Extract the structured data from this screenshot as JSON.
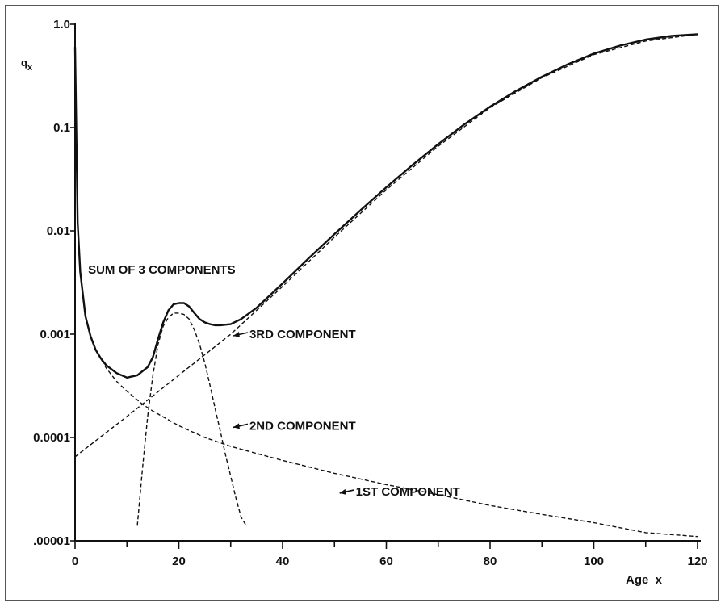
{
  "chart_data": {
    "type": "line",
    "title": "",
    "xlabel": "Age  x",
    "ylabel": "q",
    "ylabel_subscript": "x",
    "xlim": [
      0,
      120
    ],
    "ylim": [
      1e-05,
      1.0
    ],
    "yscale": "log",
    "grid": false,
    "x_ticks": [
      0,
      20,
      40,
      60,
      80,
      100,
      120
    ],
    "x_tick_labels": [
      "0",
      "20",
      "40",
      "60",
      "80",
      "100",
      "120"
    ],
    "y_ticks": [
      1e-05,
      0.0001,
      0.001,
      0.01,
      0.1,
      1.0
    ],
    "y_tick_labels": [
      ".00001",
      "0.0001",
      "0.001",
      "0.01",
      "0.1",
      "1.0"
    ],
    "series": [
      {
        "name": "SUM OF 3 COMPONENTS",
        "style": "solid",
        "x": [
          0,
          0.5,
          1,
          2,
          3,
          4,
          5,
          6,
          8,
          10,
          12,
          14,
          15,
          16,
          17,
          18,
          19,
          20,
          21,
          22,
          23,
          24,
          25,
          26,
          27,
          28,
          30,
          32,
          35,
          40,
          45,
          50,
          55,
          60,
          65,
          70,
          75,
          80,
          85,
          90,
          95,
          100,
          105,
          110,
          115,
          120
        ],
        "y": [
          0.6,
          0.012,
          0.004,
          0.0015,
          0.00095,
          0.0007,
          0.00058,
          0.0005,
          0.00042,
          0.00038,
          0.0004,
          0.00048,
          0.0006,
          0.0009,
          0.0013,
          0.0017,
          0.00195,
          0.002,
          0.002,
          0.00185,
          0.0016,
          0.0014,
          0.0013,
          0.00125,
          0.00122,
          0.00122,
          0.00125,
          0.0014,
          0.0018,
          0.0031,
          0.0054,
          0.0093,
          0.0158,
          0.0264,
          0.0432,
          0.069,
          0.107,
          0.159,
          0.226,
          0.31,
          0.41,
          0.52,
          0.62,
          0.71,
          0.77,
          0.8
        ]
      },
      {
        "name": "1ST COMPONENT",
        "style": "dashed",
        "x": [
          0,
          0.5,
          1,
          2,
          3,
          4,
          6,
          8,
          10,
          13,
          15,
          20,
          25,
          30,
          35,
          40,
          50,
          60,
          70,
          80,
          90,
          100,
          110,
          120
        ],
        "y": [
          0.6,
          0.012,
          0.004,
          0.0015,
          0.00095,
          0.0007,
          0.00047,
          0.00035,
          0.00028,
          0.00021,
          0.00018,
          0.00013,
          0.0001,
          8.2e-05,
          7e-05,
          6e-05,
          4.5e-05,
          3.5e-05,
          2.8e-05,
          2.2e-05,
          1.8e-05,
          1.5e-05,
          1.2e-05,
          1.1e-05
        ]
      },
      {
        "name": "2ND COMPONENT",
        "style": "dashed",
        "x": [
          12,
          13,
          14,
          15,
          16,
          17,
          18,
          19,
          20,
          21,
          22,
          23,
          24,
          25,
          26,
          27,
          28,
          29,
          30,
          31,
          32,
          33
        ],
        "y": [
          1.4e-05,
          5e-05,
          0.00016,
          0.0004,
          0.0008,
          0.0012,
          0.00145,
          0.0016,
          0.0016,
          0.00155,
          0.0014,
          0.0011,
          0.0008,
          0.00053,
          0.00032,
          0.00019,
          0.000115,
          6.8e-05,
          4.2e-05,
          2.6e-05,
          1.7e-05,
          1.4e-05
        ]
      },
      {
        "name": "3RD COMPONENT",
        "style": "dashed",
        "x": [
          0,
          10,
          20,
          30,
          40,
          50,
          60,
          70,
          80,
          90,
          100,
          110,
          120
        ],
        "y": [
          6.5e-05,
          0.00016,
          0.0004,
          0.001,
          0.0029,
          0.0087,
          0.025,
          0.066,
          0.156,
          0.304,
          0.508,
          0.688,
          0.8
        ]
      }
    ],
    "annotations": [
      {
        "text": "SUM OF 3 COMPONENTS",
        "x": 2.5,
        "y": 0.0042
      },
      {
        "text": "3RD COMPONENT",
        "x": 30.5,
        "y": 0.001,
        "arrow": true
      },
      {
        "text": "2ND COMPONENT",
        "x": 30.5,
        "y": 0.00013,
        "arrow": true
      },
      {
        "text": "1ST COMPONENT",
        "x": 51,
        "y": 3e-05,
        "arrow": true
      }
    ]
  }
}
